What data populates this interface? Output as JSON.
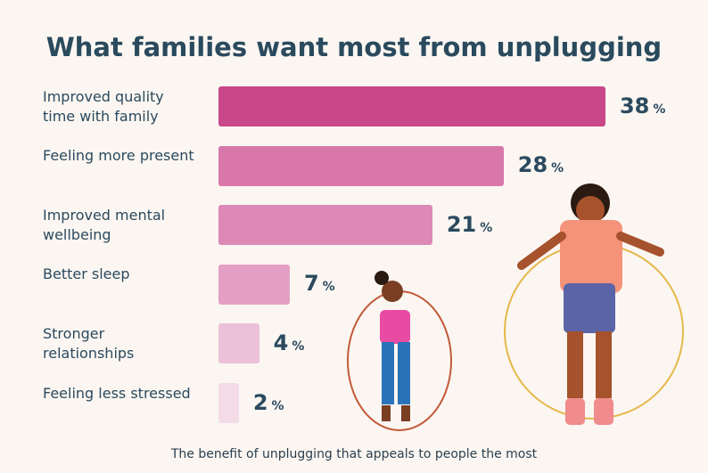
{
  "chart_data": {
    "type": "bar",
    "orientation": "horizontal",
    "title": "What families want most from unplugging",
    "caption": "The benefit of unplugging that appeals to people the most",
    "categories": [
      "Improved quality time with family",
      "Feeling more present",
      "Improved mental wellbeing",
      "Better sleep",
      "Stronger relationships",
      "Feeling less stressed"
    ],
    "values": [
      38,
      28,
      21,
      7,
      4,
      2
    ],
    "unit": "%",
    "colors": [
      "#c9488a",
      "#d977aa",
      "#dc89b6",
      "#e4a0c4",
      "#ecc0d8",
      "#f3dce8"
    ]
  }
}
